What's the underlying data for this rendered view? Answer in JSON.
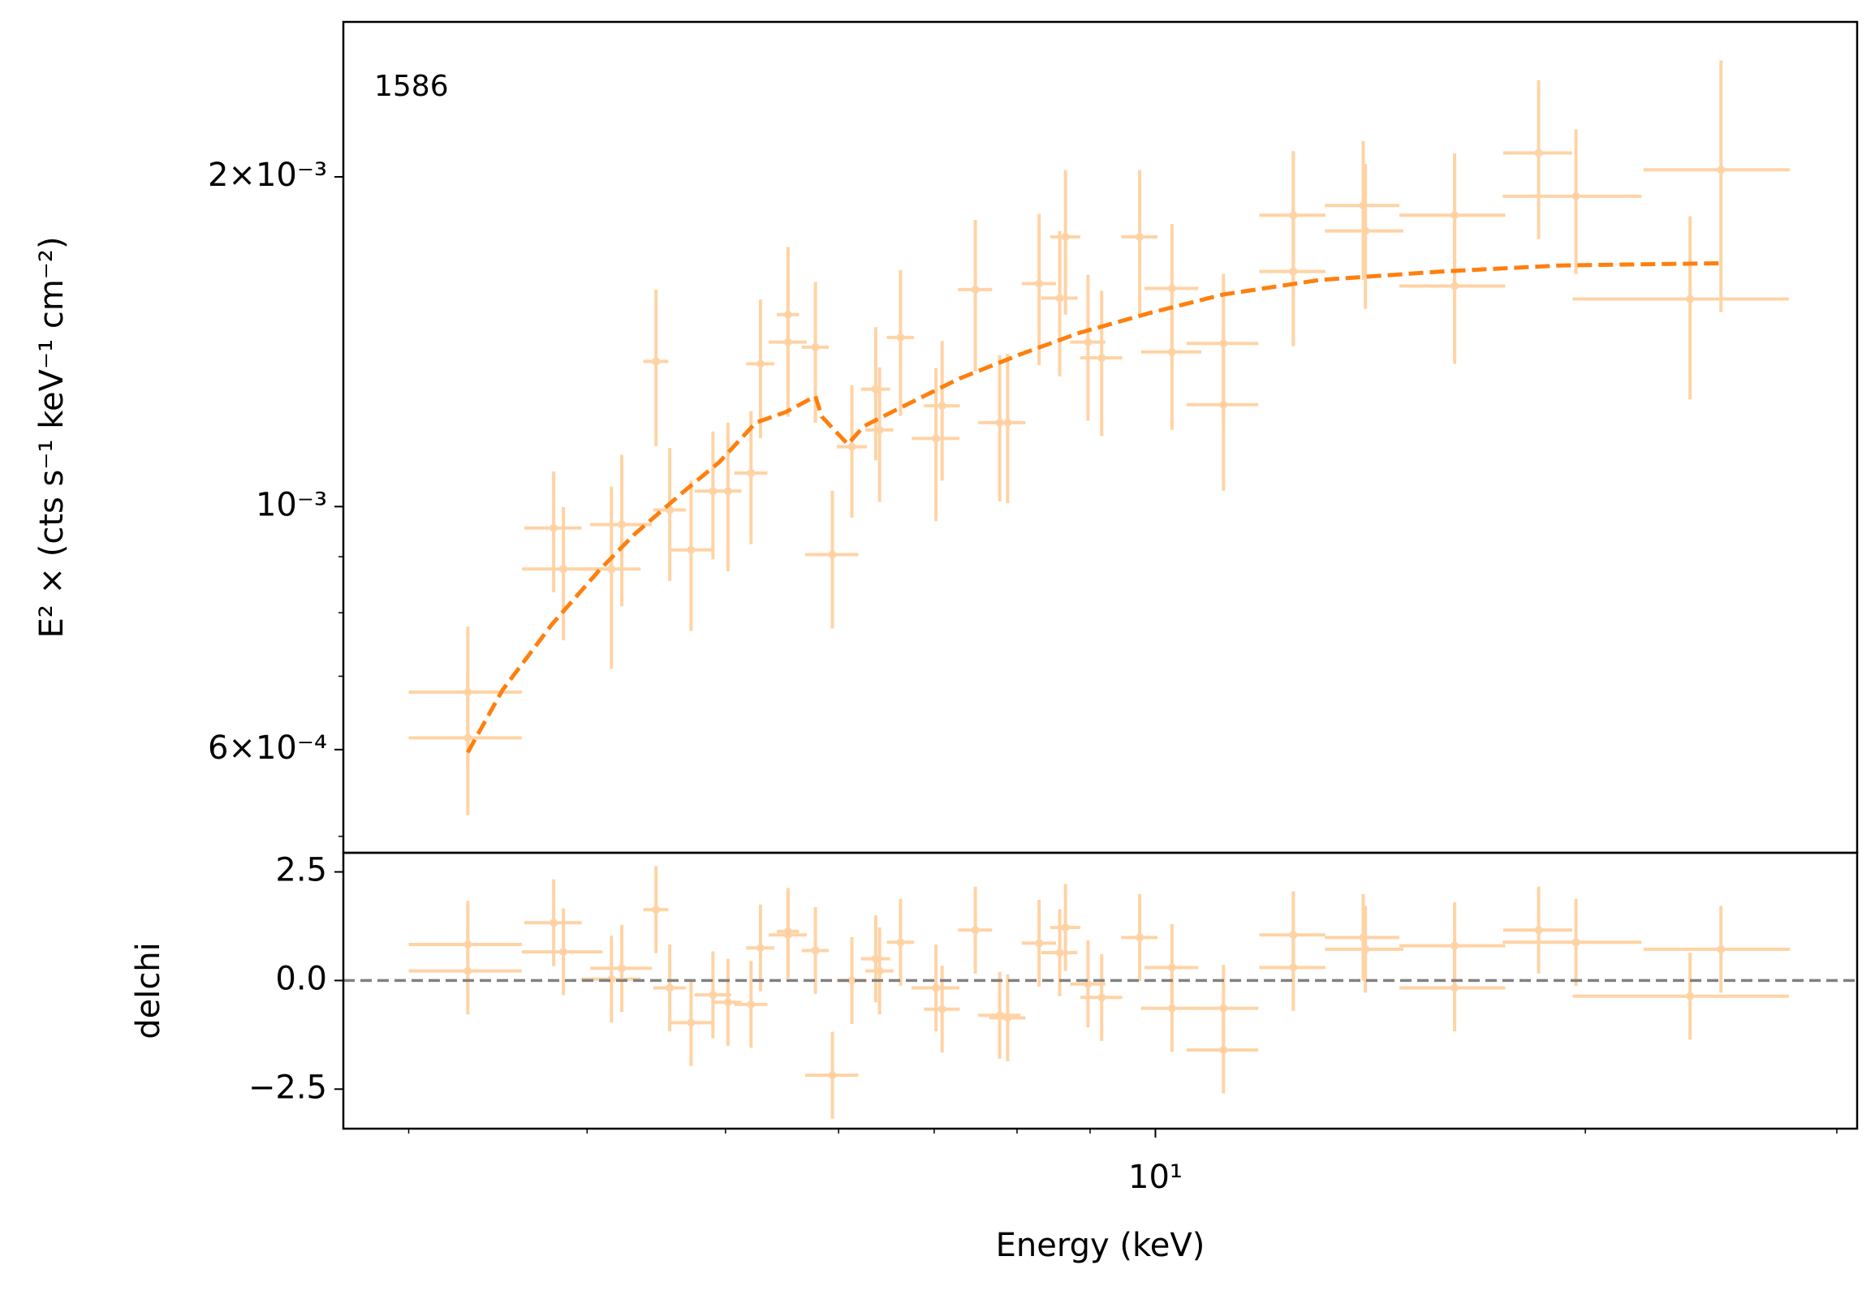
{
  "chart_data": [
    {
      "type": "errorbar",
      "annotation": "1586",
      "ylabel": "E² × (cts s⁻¹ keV⁻¹ cm⁻²)",
      "xscale": "log",
      "xlim": [
        2.7,
        31
      ],
      "yscale": "log",
      "ylim": [
        0.000483,
        0.00277
      ],
      "yticks": [
        {
          "value": 0.0006,
          "label": "6×10⁻⁴"
        },
        {
          "value": 0.001,
          "label": "10⁻³"
        },
        {
          "value": 0.002,
          "label": "2×10⁻³"
        }
      ],
      "yminorticks": [
        0.0005,
        0.0007,
        0.0008,
        0.0009
      ],
      "color": "#ffd3a5",
      "x": [
        3.3,
        3.3,
        3.79,
        3.85,
        4.16,
        4.23,
        4.47,
        4.57,
        4.73,
        4.9,
        5.02,
        5.21,
        5.29,
        5.53,
        5.53,
        5.78,
        5.94,
        6.13,
        6.37,
        6.41,
        6.63,
        7.02,
        7.09,
        7.48,
        7.78,
        7.88,
        8.29,
        8.57,
        8.65,
        8.97,
        9.17,
        9.75,
        10.27,
        10.27,
        11.16,
        11.16,
        12.49,
        12.49,
        13.98,
        14.03,
        16.2,
        16.2,
        18.55,
        19.7,
        23.68,
        24.89
      ],
      "xerr": [
        0.3,
        0.3,
        0.175,
        0.25,
        0.2,
        0.21,
        0.09,
        0.12,
        0.17,
        0.145,
        0.11,
        0.14,
        0.12,
        0.1,
        0.17,
        0.125,
        0.255,
        0.15,
        0.15,
        0.145,
        0.145,
        0.27,
        0.205,
        0.205,
        0.265,
        0.23,
        0.23,
        0.25,
        0.21,
        0.255,
        0.31,
        0.285,
        0.445,
        0.5,
        0.645,
        0.645,
        0.665,
        0.665,
        0.84,
        0.885,
        1.38,
        1.38,
        1.03,
        2.195,
        4.085,
        2.92
      ],
      "values": [
        0.000677,
        0.000615,
        0.000956,
        0.000877,
        0.000877,
        0.000963,
        0.001357,
        0.000993,
        0.000913,
        0.001033,
        0.001033,
        0.001073,
        0.00135,
        0.001497,
        0.001413,
        0.001398,
        0.000904,
        0.001134,
        0.00128,
        0.001175,
        0.001427,
        0.001154,
        0.001236,
        0.001578,
        0.001193,
        0.001193,
        0.001598,
        0.00155,
        0.001763,
        0.001413,
        0.001367,
        0.001763,
        0.001582,
        0.001384,
        0.001409,
        0.001239,
        0.001845,
        0.001639,
        0.001883,
        0.001785,
        0.001845,
        0.00159,
        0.002103,
        0.00192,
        0.001547,
        0.00203
      ],
      "yerr": [
        0.0001,
        9.2e-05,
        0.000121,
        0.000122,
        0.000166,
        0.000152,
        0.000221,
        0.000138,
        0.000143,
        0.000138,
        0.00016,
        0.000149,
        0.000195,
        0.000229,
        0.000205,
        0.000205,
        0.00013,
        0.000157,
        0.000178,
        0.000165,
        0.000217,
        0.000184,
        0.00018,
        0.000249,
        0.000182,
        0.000186,
        0.000252,
        0.000235,
        0.000266,
        0.000215,
        0.000207,
        0.000266,
        0.000229,
        0.000209,
        0.000222,
        0.000205,
        0.000266,
        0.000238,
        0.000273,
        0.00027,
        0.000256,
        0.00024,
        0.000348,
        0.00029,
        0.000294,
        0.000525
      ],
      "model": {
        "color": "#ff7f0e",
        "linestyle": "dashed",
        "x": [
          3.3,
          3.49,
          3.78,
          4.08,
          4.32,
          4.67,
          4.95,
          5.25,
          5.51,
          5.78,
          5.84,
          6.09,
          6.25,
          6.49,
          7.29,
          8.04,
          8.85,
          9.94,
          11.16,
          13.03,
          15.82,
          19.2,
          24.89
        ],
        "values": [
          0.0005965,
          0.00068,
          0.000781,
          0.000875,
          0.000944,
          0.001031,
          0.001098,
          0.001193,
          0.00122,
          0.001261,
          0.001208,
          0.00114,
          0.001184,
          0.001214,
          0.001309,
          0.001377,
          0.001441,
          0.001504,
          0.001562,
          0.00161,
          0.001639,
          0.00166,
          0.001668
        ]
      }
    },
    {
      "type": "errorbar",
      "xlabel": "Energy (keV)",
      "ylabel": "delchi",
      "xscale": "log",
      "xlim": [
        2.7,
        31
      ],
      "xticks": [
        {
          "value": 10,
          "label": "10¹"
        }
      ],
      "xminorticks": [
        3,
        4,
        5,
        6,
        7,
        8,
        9,
        20,
        30
      ],
      "ylim": [
        -3.41,
        2.94
      ],
      "yticks": [
        {
          "value": -2.5,
          "label": "−2.5"
        },
        {
          "value": 0,
          "label": "0.0"
        },
        2.5
      ],
      "color": "#ffd3a5",
      "x": [
        3.3,
        3.3,
        3.79,
        3.85,
        4.16,
        4.23,
        4.47,
        4.57,
        4.73,
        4.9,
        5.02,
        5.21,
        5.29,
        5.53,
        5.53,
        5.78,
        5.94,
        6.13,
        6.37,
        6.41,
        6.63,
        7.02,
        7.09,
        7.48,
        7.78,
        7.88,
        8.29,
        8.57,
        8.65,
        8.97,
        9.17,
        9.75,
        10.27,
        10.27,
        11.16,
        11.16,
        12.49,
        12.49,
        13.98,
        14.03,
        16.2,
        16.2,
        18.55,
        19.7,
        23.68,
        24.89
      ],
      "xerr": [
        0.3,
        0.3,
        0.175,
        0.25,
        0.2,
        0.21,
        0.09,
        0.12,
        0.17,
        0.145,
        0.11,
        0.14,
        0.12,
        0.1,
        0.17,
        0.125,
        0.255,
        0.15,
        0.15,
        0.145,
        0.145,
        0.27,
        0.205,
        0.205,
        0.265,
        0.23,
        0.23,
        0.25,
        0.21,
        0.255,
        0.31,
        0.285,
        0.445,
        0.5,
        0.645,
        0.645,
        0.665,
        0.665,
        0.84,
        0.885,
        1.38,
        1.38,
        1.03,
        2.195,
        4.085,
        2.92
      ],
      "values": [
        0.83,
        0.22,
        1.33,
        0.66,
        0.03,
        0.28,
        1.63,
        -0.17,
        -0.97,
        -0.33,
        -0.5,
        -0.55,
        0.75,
        1.13,
        1.05,
        0.69,
        -2.18,
        0,
        0.5,
        0.22,
        0.88,
        -0.17,
        -0.66,
        1.16,
        -0.8,
        -0.86,
        0.86,
        0.64,
        1.22,
        -0.08,
        -0.39,
        0.99,
        0.3,
        -0.64,
        -0.64,
        -1.6,
        1.05,
        0.3,
        0.99,
        0.72,
        0.8,
        -0.17,
        1.16,
        0.88,
        -0.36,
        0.72
      ],
      "yerr": [
        1,
        1,
        1,
        1,
        1,
        1,
        1,
        1,
        1,
        1,
        1,
        1,
        1,
        1,
        1,
        1,
        1,
        1,
        1,
        1,
        1,
        1,
        1,
        1,
        1,
        1,
        1,
        1,
        1,
        1,
        1,
        1,
        1,
        1,
        1,
        1,
        1,
        1,
        1,
        1,
        1,
        1,
        1,
        1,
        1,
        1
      ],
      "hline": {
        "value": 0,
        "color": "#808080",
        "linestyle": "dashed"
      }
    }
  ]
}
